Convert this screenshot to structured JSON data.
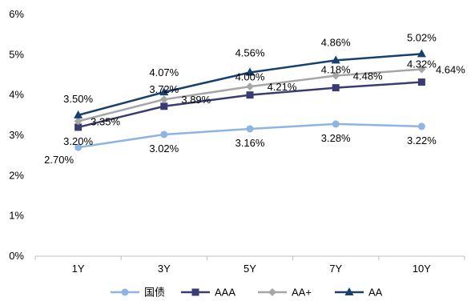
{
  "chart_data": {
    "type": "line",
    "categories": [
      "1Y",
      "3Y",
      "5Y",
      "7Y",
      "10Y"
    ],
    "ylim": [
      0,
      6
    ],
    "yticks": [
      "0%",
      "1%",
      "2%",
      "3%",
      "4%",
      "5%",
      "6%"
    ],
    "grid": false,
    "legend_position": "bottom",
    "series": [
      {
        "name": "国债",
        "values": [
          2.7,
          3.02,
          3.16,
          3.28,
          3.22
        ],
        "labels": [
          "2.70%",
          "3.02%",
          "3.16%",
          "3.28%",
          "3.22%"
        ],
        "color": "#8EB4E3",
        "marker": "circle"
      },
      {
        "name": "AAA",
        "values": [
          3.2,
          3.72,
          4.0,
          4.18,
          4.32
        ],
        "labels": [
          "3.20%",
          "3.72%",
          "4.00%",
          "4.18%",
          "4.32%"
        ],
        "color": "#3B3B73",
        "marker": "square"
      },
      {
        "name": "AA+",
        "values": [
          3.35,
          3.89,
          4.21,
          4.48,
          4.64
        ],
        "labels": [
          "3.35%",
          "3.89%",
          "4.21%",
          "4.48%",
          "4.64%"
        ],
        "color": "#A6A6A6",
        "marker": "diamond"
      },
      {
        "name": "AA",
        "values": [
          3.5,
          4.07,
          4.56,
          4.86,
          5.02
        ],
        "labels": [
          "3.50%",
          "4.07%",
          "4.56%",
          "4.86%",
          "5.02%"
        ],
        "color": "#17406D",
        "marker": "triangle"
      }
    ]
  }
}
